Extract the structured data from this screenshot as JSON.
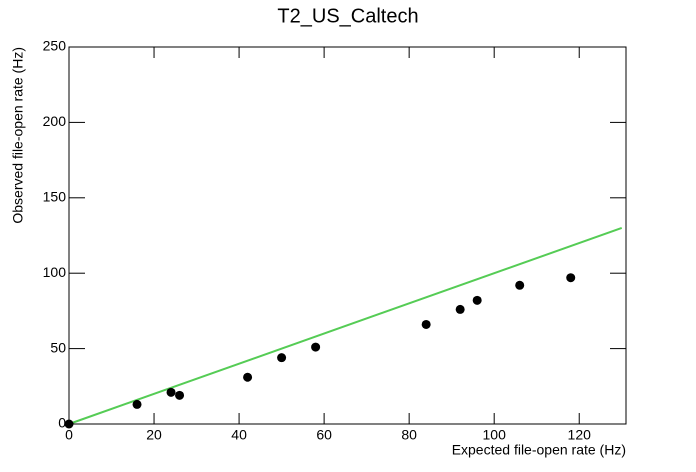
{
  "chart_data": {
    "type": "scatter",
    "title": "T2_US_Caltech",
    "x_label": "Expected file-open rate (Hz)",
    "y_label": "Observed file-open rate (Hz)",
    "xlim": [
      0,
      131
    ],
    "ylim": [
      0,
      250
    ],
    "xticks": [
      0,
      20,
      40,
      60,
      80,
      100,
      120
    ],
    "yticks": [
      0,
      50,
      100,
      150,
      200,
      250
    ],
    "points": {
      "color": "#000000",
      "x": [
        0,
        16,
        24,
        26,
        42,
        50,
        58,
        84,
        92,
        96,
        106,
        118
      ],
      "y": [
        0,
        13,
        21,
        19,
        31,
        44,
        51,
        66,
        76,
        82,
        92,
        97
      ]
    },
    "fit": {
      "color": "#55cc55",
      "x": [
        0,
        130
      ],
      "y": [
        0,
        130
      ]
    }
  }
}
